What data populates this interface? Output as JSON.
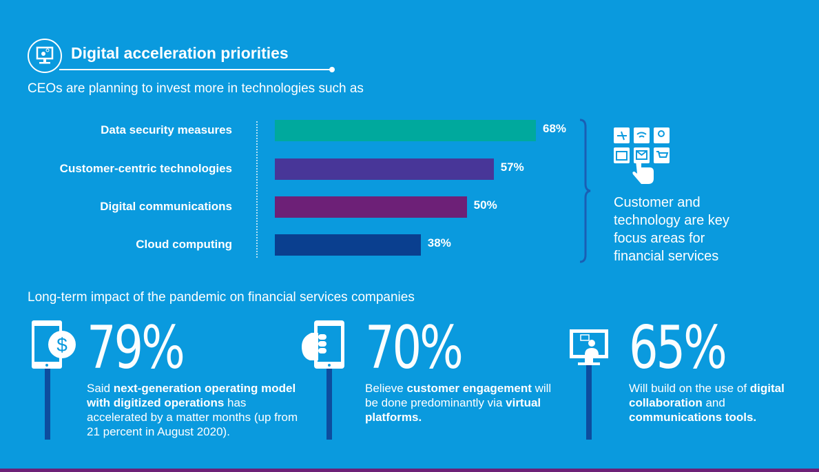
{
  "header": {
    "title": "Digital acceleration priorities",
    "subtitle": "CEOs are planning to invest more in technologies such as",
    "icon": "monitor-gear-icon"
  },
  "chart_data": {
    "type": "bar",
    "orientation": "horizontal",
    "categories": [
      "Data security measures",
      "Customer-centric technologies",
      "Digital communications",
      "Cloud computing"
    ],
    "values": [
      68,
      57,
      50,
      38
    ],
    "labels": [
      "68%",
      "57%",
      "50%",
      "38%"
    ],
    "colors": [
      "#00a99d",
      "#483698",
      "#6d2077",
      "#0a3f8f"
    ],
    "unit": "%",
    "grid": false
  },
  "callout": {
    "text": "Customer and technology are key focus areas for financial services",
    "icon": "touch-apps-icon"
  },
  "section2": {
    "title": "Long-term impact of the pandemic on financial services companies"
  },
  "stats": [
    {
      "value": "79%",
      "icon": "phone-dollar-icon",
      "parts": [
        [
          "Said ",
          false
        ],
        [
          "next-generation operating model with digitized operations",
          true
        ],
        [
          " has accelerated by a matter months (up from 21 percent in August 2020).",
          false
        ]
      ]
    },
    {
      "value": "70%",
      "icon": "hand-phone-icon",
      "parts": [
        [
          "Believe ",
          false
        ],
        [
          "customer engagement",
          true
        ],
        [
          " will be done predominantly via ",
          false
        ],
        [
          "virtual platforms.",
          true
        ]
      ]
    },
    {
      "value": "65%",
      "icon": "monitor-video-chat-icon",
      "parts": [
        [
          "Will build on the use of ",
          false
        ],
        [
          "digital collaboration",
          true
        ],
        [
          " and ",
          false
        ],
        [
          "communications tools.",
          true
        ]
      ]
    }
  ],
  "colors": {
    "background": "#0a9ade",
    "accent_bar": "#6d2077",
    "pole": "#0d4c9e"
  }
}
